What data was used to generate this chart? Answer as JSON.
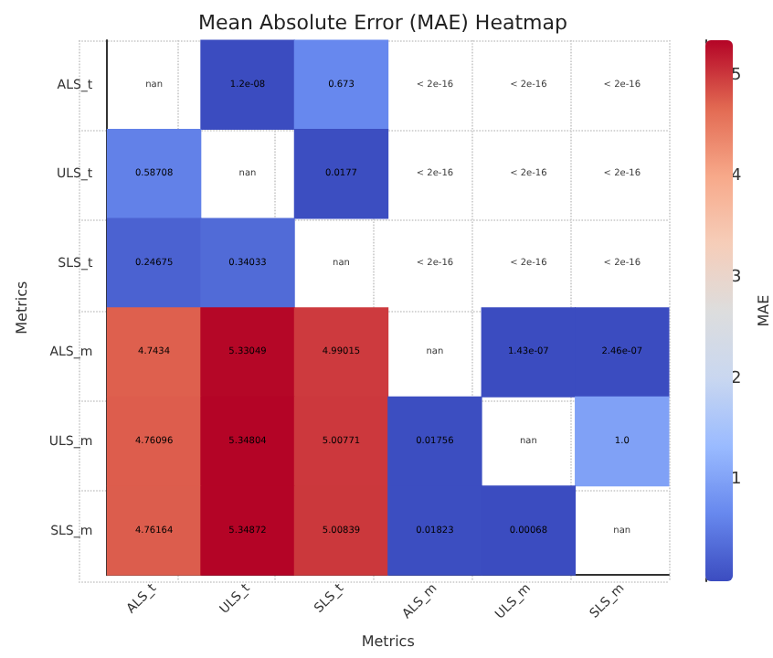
{
  "chart_data": {
    "type": "heatmap",
    "title": "Mean Absolute Error (MAE) Heatmap",
    "xlabel": "Metrics",
    "ylabel": "Metrics",
    "clabel": "MAE",
    "categories": [
      "ALS_t",
      "ULS_t",
      "SLS_t",
      "ALS_m",
      "ULS_m",
      "SLS_m"
    ],
    "y_categories": [
      "ALS_t",
      "ULS_t",
      "SLS_t",
      "ALS_m",
      "ULS_m",
      "SLS_m"
    ],
    "cells": [
      [
        null,
        1.2e-08,
        0.673,
        null,
        null,
        null
      ],
      [
        0.58708,
        null,
        0.0177,
        null,
        null,
        null
      ],
      [
        0.24675,
        0.34033,
        null,
        null,
        null,
        null
      ],
      [
        4.7434,
        5.33049,
        4.99015,
        null,
        1.43e-07,
        2.46e-07
      ],
      [
        4.76096,
        5.34804,
        5.00771,
        0.01756,
        null,
        1.0
      ],
      [
        4.76164,
        5.34872,
        5.00839,
        0.01823,
        0.00068,
        null
      ]
    ],
    "cell_labels": [
      [
        "nan",
        "1.2e-08",
        "0.673",
        "< 2e-16",
        "< 2e-16",
        "< 2e-16"
      ],
      [
        "0.58708",
        "nan",
        "0.0177",
        "< 2e-16",
        "< 2e-16",
        "< 2e-16"
      ],
      [
        "0.24675",
        "0.34033",
        "nan",
        "< 2e-16",
        "< 2e-16",
        "< 2e-16"
      ],
      [
        "4.7434",
        "5.33049",
        "4.99015",
        "nan",
        "1.43e-07",
        "2.46e-07"
      ],
      [
        "4.76096",
        "5.34804",
        "5.00771",
        "0.01756",
        "nan",
        "1.0"
      ],
      [
        "4.76164",
        "5.34872",
        "5.00839",
        "0.01823",
        "0.00068",
        "nan"
      ]
    ],
    "clim": [
      0,
      5.35
    ],
    "cticks": [
      1,
      2,
      3,
      4,
      5
    ],
    "grid": true
  }
}
